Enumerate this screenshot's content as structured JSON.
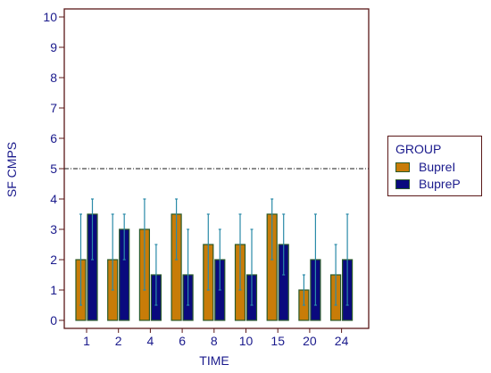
{
  "chart_data": {
    "type": "bar",
    "title": "",
    "xlabel": "TIME",
    "ylabel": "SF CMPS",
    "categories": [
      "1",
      "2",
      "4",
      "6",
      "8",
      "10",
      "15",
      "20",
      "24"
    ],
    "ylim": [
      0,
      10
    ],
    "yticks": [
      "0",
      "1",
      "2",
      "3",
      "4",
      "5",
      "6",
      "7",
      "8",
      "9",
      "10"
    ],
    "reference_line": 5,
    "series": [
      {
        "name": "BupreI",
        "color": "#c87c08",
        "values": [
          2,
          2,
          3,
          3.5,
          2.5,
          2.5,
          3.5,
          1,
          1.5
        ],
        "error_low": [
          0.5,
          1,
          1,
          2,
          1,
          1,
          2,
          0.5,
          0.5
        ],
        "error_high": [
          3.5,
          3.5,
          4,
          4,
          3.5,
          3.5,
          4,
          1.5,
          2.5
        ]
      },
      {
        "name": "BupreP",
        "color": "#0a0a7e",
        "values": [
          3.5,
          3,
          1.5,
          1.5,
          2,
          1.5,
          2.5,
          2,
          2
        ],
        "error_low": [
          2,
          2,
          0.5,
          0.5,
          1,
          0.5,
          1.5,
          0.5,
          0.5
        ],
        "error_high": [
          4,
          3.5,
          2.5,
          3,
          3,
          3,
          3.5,
          3.5,
          3.5
        ]
      }
    ],
    "legend": {
      "title": "GROUP",
      "position": "right"
    },
    "grid": false
  }
}
